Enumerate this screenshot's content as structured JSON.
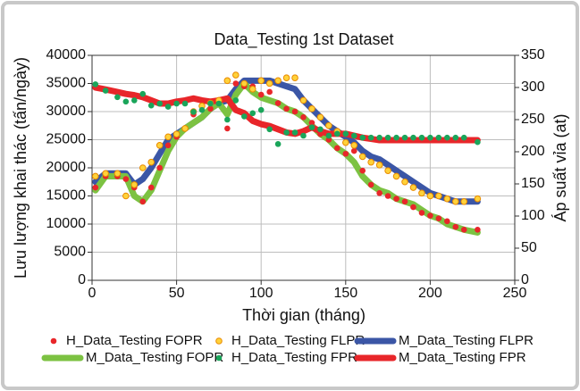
{
  "chart_data": {
    "type": "line",
    "title": "Data_Testing 1st Dataset",
    "xlabel": "Thời gian (tháng)",
    "ylabel": "Lưu lượng khai thác (tấn/ngày)",
    "y2label": "Áp suất vỉa (at)",
    "xlim": [
      0,
      250
    ],
    "xticks": [
      0,
      50,
      100,
      150,
      200,
      250
    ],
    "ylim": [
      0,
      40000
    ],
    "yticks": [
      0,
      5000,
      10000,
      15000,
      20000,
      25000,
      30000,
      35000,
      40000
    ],
    "y2lim": [
      0,
      350
    ],
    "y2ticks": [
      0,
      50,
      100,
      150,
      200,
      250,
      300,
      350
    ],
    "grid": true,
    "x": [
      2,
      8,
      15,
      20,
      25,
      30,
      35,
      40,
      45,
      50,
      55,
      60,
      65,
      70,
      75,
      80,
      85,
      90,
      95,
      100,
      105,
      110,
      115,
      120,
      125,
      130,
      135,
      140,
      145,
      150,
      155,
      160,
      165,
      170,
      175,
      180,
      185,
      190,
      195,
      200,
      205,
      210,
      215,
      220,
      228
    ],
    "series": [
      {
        "name": "H_Data_Testing FOPR",
        "kind": "marker",
        "color": "#e8262a",
        "values": [
          16500,
          18500,
          18500,
          18000,
          16500,
          14000,
          16500,
          20000,
          24000,
          25500,
          27000,
          29500,
          31000,
          30500,
          31500,
          27000,
          35000,
          34500,
          34500,
          33000,
          33500,
          31500,
          30500,
          30000,
          29000,
          28000,
          26000,
          25000,
          23500,
          22500,
          23000,
          19500,
          17000,
          15500,
          15000,
          14500,
          14000,
          13000,
          12000,
          11500,
          11000,
          10500,
          9500,
          9000,
          9000
        ]
      },
      {
        "name": "H_Data_Testing FLPR",
        "kind": "marker",
        "color": "#ffd23a",
        "edgecolor": "#e98a00",
        "values": [
          18500,
          19000,
          19000,
          15000,
          17000,
          20000,
          21000,
          24000,
          25500,
          26000,
          27000,
          30000,
          31000,
          31500,
          32000,
          35500,
          36500,
          35000,
          34000,
          35500,
          35000,
          35500,
          36000,
          36000,
          32000,
          30500,
          29000,
          27500,
          26500,
          24500,
          24000,
          22000,
          21000,
          20500,
          19500,
          18500,
          17500,
          16500,
          15500,
          15000,
          15000,
          14500,
          14000,
          14000,
          14500
        ]
      },
      {
        "name": "M_Data_Testing FLPR",
        "kind": "line",
        "color": "#3b56a6",
        "values": [
          17500,
          19000,
          19000,
          19000,
          17000,
          18000,
          20000,
          22500,
          25000,
          26000,
          27000,
          28000,
          29000,
          30500,
          31500,
          32000,
          34000,
          35500,
          35500,
          35500,
          35500,
          35000,
          34500,
          34000,
          32000,
          30500,
          29000,
          27500,
          26500,
          25500,
          24500,
          23000,
          22000,
          21500,
          20500,
          19500,
          18500,
          17500,
          16500,
          15500,
          15000,
          14500,
          14000,
          14000,
          14000
        ]
      },
      {
        "name": "M_Data_Testing FOPR",
        "kind": "line",
        "color": "#7cc242",
        "values": [
          16000,
          18500,
          18500,
          18500,
          15000,
          14000,
          16000,
          19500,
          23000,
          25500,
          27000,
          28000,
          29000,
          30500,
          31500,
          29500,
          33000,
          35000,
          33500,
          32500,
          32000,
          31500,
          30500,
          30000,
          29000,
          27500,
          26000,
          25000,
          23500,
          22500,
          21000,
          18500,
          17000,
          16000,
          15500,
          14500,
          14000,
          13500,
          12500,
          11500,
          11000,
          10000,
          9500,
          9000,
          8500
        ]
      },
      {
        "name": "H_Data_Testing FPR",
        "kind": "marker",
        "color": "#1aa55a",
        "axis": "y2",
        "values": [
          305,
          295,
          285,
          278,
          280,
          290,
          272,
          275,
          270,
          275,
          275,
          262,
          265,
          275,
          275,
          250,
          280,
          255,
          260,
          265,
          235,
          212,
          230,
          230,
          225,
          238,
          235,
          225,
          228,
          228,
          225,
          222,
          222,
          222,
          222,
          222,
          222,
          222,
          222,
          222,
          222,
          222,
          222,
          222,
          215
        ]
      },
      {
        "name": "M_Data_Testing FPR",
        "kind": "line",
        "color": "#e8262a",
        "axis": "y2",
        "values": [
          300,
          297,
          293,
          290,
          288,
          285,
          280,
          275,
          275,
          278,
          280,
          283,
          280,
          278,
          280,
          283,
          265,
          260,
          248,
          243,
          240,
          235,
          230,
          228,
          232,
          238,
          232,
          228,
          228,
          228,
          225,
          222,
          220,
          218,
          218,
          218,
          218,
          218,
          218,
          218,
          218,
          218,
          218,
          218,
          218
        ]
      }
    ]
  }
}
